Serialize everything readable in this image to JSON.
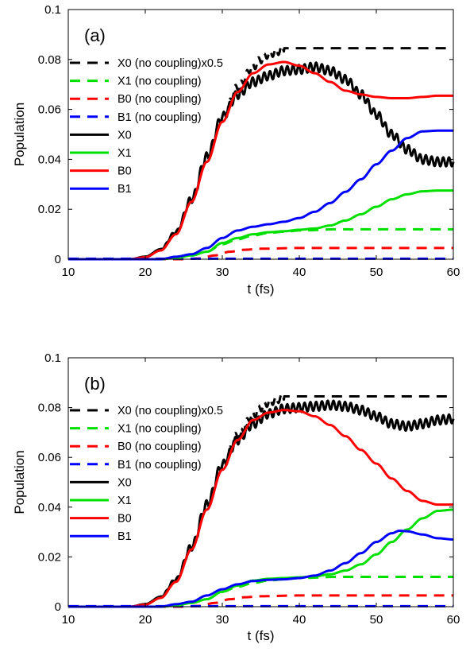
{
  "chart_data": [
    {
      "type": "line",
      "panel_tag": "(a)",
      "xlabel": "t (fs)",
      "ylabel": "Population",
      "xlim": [
        10,
        60
      ],
      "ylim": [
        0,
        0.1
      ],
      "xticks": [
        "10",
        "20",
        "30",
        "40",
        "50",
        "60"
      ],
      "yticks": [
        "0",
        "0.02",
        "0.04",
        "0.06",
        "0.08",
        "0.1"
      ],
      "grid": false,
      "legend_position": "top-left",
      "series": [
        {
          "name": "X0 (no coupling)x0.5",
          "color": "#000000",
          "dash": true,
          "oscillation": 0.0015,
          "x": [
            10,
            18,
            20,
            22,
            24,
            26,
            28,
            30,
            32,
            34,
            35,
            36,
            37,
            38,
            40,
            45,
            50,
            55,
            60
          ],
          "y": [
            0,
            0,
            0.001,
            0.004,
            0.011,
            0.024,
            0.041,
            0.057,
            0.069,
            0.077,
            0.08,
            0.082,
            0.083,
            0.0845,
            0.0845,
            0.0845,
            0.0845,
            0.0845,
            0.0845
          ]
        },
        {
          "name": "X1 (no coupling)",
          "color": "#00e000",
          "dash": true,
          "oscillation": 0,
          "x": [
            10,
            22,
            24,
            26,
            28,
            30,
            32,
            34,
            36,
            38,
            40,
            45,
            50,
            55,
            60
          ],
          "y": [
            0,
            0,
            0.0005,
            0.0015,
            0.003,
            0.006,
            0.008,
            0.0095,
            0.0105,
            0.011,
            0.0115,
            0.012,
            0.012,
            0.012,
            0.012
          ]
        },
        {
          "name": "B0 (no coupling)",
          "color": "#ff0000",
          "dash": true,
          "oscillation": 0,
          "x": [
            10,
            25,
            27,
            29,
            31,
            33,
            35,
            40,
            45,
            50,
            55,
            60
          ],
          "y": [
            0,
            0,
            0.0003,
            0.0015,
            0.003,
            0.0038,
            0.0042,
            0.0045,
            0.0045,
            0.0045,
            0.0045,
            0.0045
          ]
        },
        {
          "name": "B1 (no coupling)",
          "color": "#0000ff",
          "dash": true,
          "oscillation": 0,
          "x": [
            10,
            60
          ],
          "y": [
            0.0002,
            0.0002
          ]
        },
        {
          "name": "X0",
          "color": "#000000",
          "dash": false,
          "oscillation": 0.0018,
          "x": [
            10,
            18,
            20,
            22,
            24,
            26,
            28,
            30,
            32,
            34,
            36,
            38,
            40,
            42,
            44,
            46,
            48,
            50,
            52,
            54,
            56,
            58,
            60
          ],
          "y": [
            0,
            0,
            0.001,
            0.004,
            0.011,
            0.024,
            0.041,
            0.057,
            0.066,
            0.071,
            0.0735,
            0.0755,
            0.076,
            0.077,
            0.0755,
            0.072,
            0.066,
            0.058,
            0.05,
            0.044,
            0.04,
            0.039,
            0.039
          ]
        },
        {
          "name": "X1",
          "color": "#00e000",
          "dash": false,
          "oscillation": 0,
          "x": [
            10,
            22,
            24,
            26,
            28,
            30,
            32,
            34,
            36,
            38,
            40,
            42,
            44,
            46,
            48,
            50,
            52,
            54,
            56,
            58,
            60
          ],
          "y": [
            0,
            0,
            0.0005,
            0.0015,
            0.003,
            0.0065,
            0.0085,
            0.01,
            0.0108,
            0.0112,
            0.0118,
            0.0123,
            0.0135,
            0.0155,
            0.018,
            0.021,
            0.024,
            0.026,
            0.0272,
            0.0275,
            0.0275
          ]
        },
        {
          "name": "B0",
          "color": "#ff0000",
          "dash": false,
          "oscillation": 0,
          "x": [
            10,
            18,
            20,
            22,
            24,
            26,
            28,
            30,
            32,
            34,
            36,
            38,
            40,
            42,
            44,
            46,
            48,
            50,
            52,
            54,
            56,
            58,
            60
          ],
          "y": [
            0,
            0,
            0.0008,
            0.0035,
            0.01,
            0.023,
            0.039,
            0.055,
            0.067,
            0.0745,
            0.078,
            0.079,
            0.0775,
            0.0745,
            0.071,
            0.0675,
            0.066,
            0.065,
            0.0645,
            0.0645,
            0.065,
            0.0655,
            0.0655
          ]
        },
        {
          "name": "B1",
          "color": "#0000ff",
          "dash": false,
          "oscillation": 0,
          "x": [
            10,
            22,
            24,
            26,
            28,
            30,
            32,
            34,
            36,
            38,
            40,
            42,
            44,
            46,
            48,
            50,
            52,
            54,
            56,
            58,
            60
          ],
          "y": [
            0,
            0,
            0.001,
            0.002,
            0.0045,
            0.0085,
            0.0115,
            0.013,
            0.014,
            0.015,
            0.0165,
            0.019,
            0.0225,
            0.027,
            0.032,
            0.038,
            0.0435,
            0.0485,
            0.0512,
            0.0515,
            0.0515
          ]
        }
      ]
    },
    {
      "type": "line",
      "panel_tag": "(b)",
      "xlabel": "t (fs)",
      "ylabel": "Population",
      "xlim": [
        10,
        60
      ],
      "ylim": [
        0,
        0.1
      ],
      "xticks": [
        "10",
        "20",
        "30",
        "40",
        "50",
        "60"
      ],
      "yticks": [
        "0",
        "0.02",
        "0.04",
        "0.06",
        "0.08",
        "0.1"
      ],
      "grid": false,
      "legend_position": "top-left",
      "series": [
        {
          "name": "X0 (no coupling)x0.5",
          "color": "#000000",
          "dash": true,
          "oscillation": 0.0015,
          "x": [
            10,
            18,
            20,
            22,
            24,
            26,
            28,
            30,
            32,
            34,
            35,
            36,
            37,
            38,
            40,
            45,
            50,
            55,
            60
          ],
          "y": [
            0,
            0,
            0.001,
            0.004,
            0.011,
            0.024,
            0.041,
            0.057,
            0.069,
            0.077,
            0.08,
            0.082,
            0.083,
            0.0845,
            0.0845,
            0.0845,
            0.0845,
            0.0845,
            0.0845
          ]
        },
        {
          "name": "X1 (no coupling)",
          "color": "#00e000",
          "dash": true,
          "oscillation": 0,
          "x": [
            10,
            22,
            24,
            26,
            28,
            30,
            32,
            34,
            36,
            38,
            40,
            45,
            50,
            55,
            60
          ],
          "y": [
            0,
            0,
            0.0005,
            0.0015,
            0.003,
            0.006,
            0.008,
            0.0095,
            0.0105,
            0.011,
            0.0115,
            0.012,
            0.012,
            0.012,
            0.012
          ]
        },
        {
          "name": "B0 (no coupling)",
          "color": "#ff0000",
          "dash": true,
          "oscillation": 0,
          "x": [
            10,
            25,
            27,
            29,
            31,
            33,
            35,
            40,
            45,
            50,
            55,
            60
          ],
          "y": [
            0,
            0,
            0.0003,
            0.0015,
            0.003,
            0.0038,
            0.0042,
            0.0045,
            0.0045,
            0.0045,
            0.0045,
            0.0045
          ]
        },
        {
          "name": "B1 (no coupling)",
          "color": "#0000ff",
          "dash": true,
          "oscillation": 0,
          "x": [
            10,
            60
          ],
          "y": [
            0.0002,
            0.0002
          ]
        },
        {
          "name": "X0",
          "color": "#000000",
          "dash": false,
          "oscillation": 0.0018,
          "x": [
            10,
            18,
            20,
            22,
            24,
            26,
            28,
            30,
            32,
            34,
            36,
            38,
            40,
            42,
            44,
            46,
            48,
            50,
            52,
            54,
            56,
            58,
            60
          ],
          "y": [
            0,
            0,
            0.001,
            0.004,
            0.011,
            0.024,
            0.041,
            0.057,
            0.067,
            0.0735,
            0.0775,
            0.0795,
            0.08,
            0.0805,
            0.081,
            0.0805,
            0.079,
            0.0765,
            0.0735,
            0.0725,
            0.0735,
            0.075,
            0.0755
          ]
        },
        {
          "name": "X1",
          "color": "#00e000",
          "dash": false,
          "oscillation": 0,
          "x": [
            10,
            22,
            24,
            26,
            28,
            30,
            32,
            34,
            36,
            38,
            40,
            42,
            44,
            46,
            48,
            50,
            52,
            54,
            56,
            58,
            60
          ],
          "y": [
            0,
            0,
            0.0005,
            0.0015,
            0.003,
            0.006,
            0.0085,
            0.0105,
            0.0112,
            0.0115,
            0.0118,
            0.0122,
            0.013,
            0.0145,
            0.017,
            0.021,
            0.026,
            0.031,
            0.0355,
            0.0385,
            0.039
          ]
        },
        {
          "name": "B0",
          "color": "#ff0000",
          "dash": false,
          "oscillation": 0,
          "x": [
            10,
            18,
            20,
            22,
            24,
            26,
            28,
            30,
            32,
            34,
            36,
            38,
            40,
            42,
            44,
            46,
            48,
            50,
            52,
            54,
            56,
            58,
            60
          ],
          "y": [
            0,
            0,
            0.0008,
            0.0035,
            0.01,
            0.023,
            0.039,
            0.055,
            0.067,
            0.075,
            0.078,
            0.079,
            0.0785,
            0.0765,
            0.073,
            0.0685,
            0.063,
            0.0575,
            0.0515,
            0.0465,
            0.0425,
            0.041,
            0.041
          ]
        },
        {
          "name": "B1",
          "color": "#0000ff",
          "dash": false,
          "oscillation": 0,
          "x": [
            10,
            22,
            24,
            26,
            28,
            30,
            32,
            34,
            36,
            38,
            40,
            42,
            44,
            46,
            48,
            50,
            52,
            53,
            54,
            56,
            58,
            60
          ],
          "y": [
            0,
            0,
            0.001,
            0.002,
            0.0045,
            0.007,
            0.009,
            0.0103,
            0.0108,
            0.011,
            0.0115,
            0.0125,
            0.0145,
            0.0175,
            0.0215,
            0.026,
            0.0295,
            0.0305,
            0.0303,
            0.029,
            0.0275,
            0.027
          ]
        }
      ]
    }
  ]
}
